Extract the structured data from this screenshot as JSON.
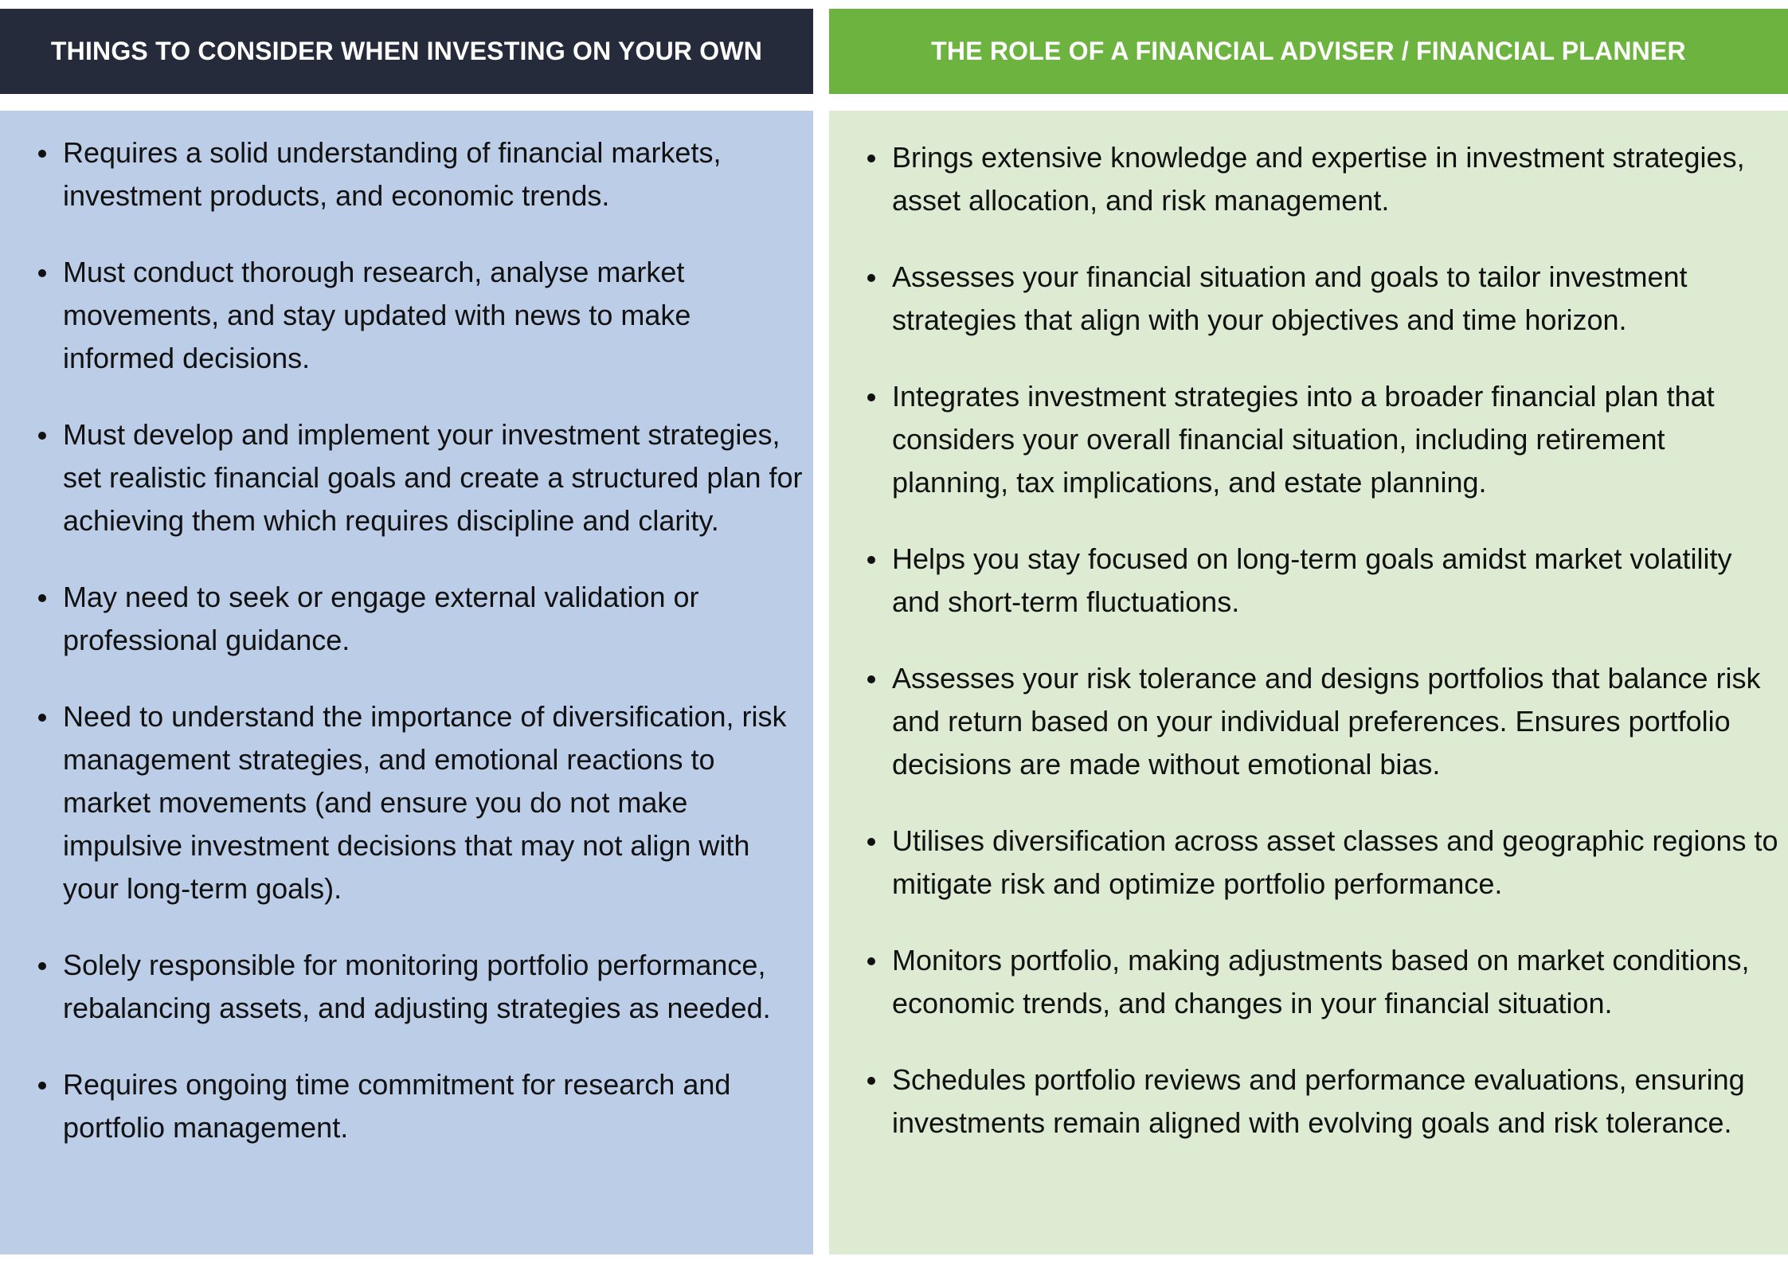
{
  "colors": {
    "left_header": "#252b3a",
    "right_header": "#6db33f",
    "left_panel": "#bccde8",
    "right_panel": "#ddebd3"
  },
  "left": {
    "title": "THINGS TO CONSIDER WHEN INVESTING ON YOUR OWN",
    "items": [
      "Requires a solid understanding of financial markets, investment products, and economic trends.",
      "Must conduct thorough research, analyse market movements, and stay updated with news to make informed decisions.",
      "Must develop and implement your investment strategies, set realistic financial goals and create a structured plan for achieving them which requires discipline and clarity.",
      "May need to seek or engage external validation or professional guidance.",
      "Need to understand the importance of diversification, risk management strategies, and emotional reactions to market movements (and ensure you do not make impulsive investment decisions that may not align with your long-term goals).",
      "Solely responsible for monitoring portfolio performance, rebalancing assets, and adjusting strategies as needed.",
      "Requires ongoing time commitment for research and portfolio management."
    ]
  },
  "right": {
    "title": "THE ROLE OF A FINANCIAL ADVISER / FINANCIAL PLANNER",
    "items": [
      "Brings extensive knowledge and expertise in investment strategies, asset allocation, and risk management.",
      "Assesses your financial situation and goals to tailor investment strategies that align with your objectives and time horizon.",
      "Integrates investment strategies into a broader financial plan that considers your overall financial situation, including retirement planning, tax implications, and estate planning.",
      "Helps you stay focused on long-term goals amidst market volatility and short-term fluctuations.",
      "Assesses your risk tolerance and designs portfolios that balance risk and return based on your individual preferences. Ensures portfolio decisions are made without emotional bias.",
      "Utilises diversification across asset classes and geographic regions to mitigate risk and optimize portfolio performance.",
      "Monitors portfolio, making adjustments based on market conditions, economic trends, and changes in your financial situation.",
      "Schedules portfolio reviews and performance evaluations, ensuring investments remain aligned with evolving goals and risk tolerance."
    ]
  }
}
